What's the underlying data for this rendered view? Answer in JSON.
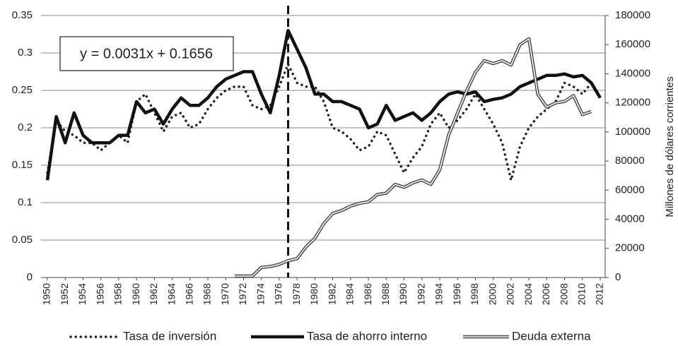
{
  "chart_data": {
    "type": "line",
    "annotation": "y = 0.0031x + 0.1656",
    "vline_x": 1977,
    "y2_label": "Millones de dólares corrientes",
    "x": [
      1950,
      1951,
      1952,
      1953,
      1954,
      1955,
      1956,
      1957,
      1958,
      1959,
      1960,
      1961,
      1962,
      1963,
      1964,
      1965,
      1966,
      1967,
      1968,
      1969,
      1970,
      1971,
      1972,
      1973,
      1974,
      1975,
      1976,
      1977,
      1978,
      1979,
      1980,
      1981,
      1982,
      1983,
      1984,
      1985,
      1986,
      1987,
      1988,
      1989,
      1990,
      1991,
      1992,
      1993,
      1994,
      1995,
      1996,
      1997,
      1998,
      1999,
      2000,
      2001,
      2002,
      2003,
      2004,
      2005,
      2006,
      2007,
      2008,
      2009,
      2010,
      2011,
      2012
    ],
    "xlim": [
      1950,
      2012
    ],
    "xticks": [
      1950,
      1952,
      1954,
      1956,
      1958,
      1960,
      1962,
      1964,
      1966,
      1968,
      1970,
      1972,
      1974,
      1976,
      1978,
      1980,
      1982,
      1984,
      1986,
      1988,
      1990,
      1992,
      1994,
      1996,
      1998,
      2000,
      2002,
      2004,
      2006,
      2008,
      2010,
      2012
    ],
    "ylim": [
      0,
      0.35
    ],
    "yticks": [
      0,
      0.05,
      0.1,
      0.15,
      0.2,
      0.25,
      0.3,
      0.35
    ],
    "y2lim": [
      0,
      180000
    ],
    "y2ticks": [
      0,
      20000,
      40000,
      60000,
      80000,
      100000,
      120000,
      140000,
      160000,
      180000
    ],
    "grid": true,
    "legend": "bottom",
    "series": [
      {
        "name": "Tasa de inversión",
        "color": "#222222",
        "style": "dotted",
        "values": [
          0.14,
          0.21,
          0.195,
          0.19,
          0.18,
          0.18,
          0.17,
          0.18,
          0.19,
          0.18,
          0.235,
          0.245,
          0.22,
          0.195,
          0.215,
          0.22,
          0.2,
          0.205,
          0.225,
          0.24,
          0.25,
          0.255,
          0.255,
          0.23,
          0.225,
          0.23,
          0.255,
          0.285,
          0.26,
          0.255,
          0.255,
          0.235,
          0.2,
          0.195,
          0.185,
          0.17,
          0.175,
          0.195,
          0.19,
          0.165,
          0.14,
          0.16,
          0.175,
          0.205,
          0.22,
          0.2,
          0.21,
          0.225,
          0.245,
          0.225,
          0.205,
          0.18,
          0.13,
          0.175,
          0.2,
          0.215,
          0.225,
          0.235,
          0.26,
          0.255,
          0.245,
          0.26,
          null
        ]
      },
      {
        "name": "Tasa de ahorro interno",
        "color": "#111111",
        "style": "solid",
        "values": [
          0.13,
          0.215,
          0.18,
          0.22,
          0.19,
          0.18,
          0.18,
          0.18,
          0.19,
          0.19,
          0.235,
          0.22,
          0.225,
          0.205,
          0.225,
          0.24,
          0.23,
          0.23,
          0.24,
          0.255,
          0.265,
          0.27,
          0.275,
          0.275,
          0.245,
          0.22,
          0.27,
          0.33,
          0.305,
          0.28,
          0.245,
          0.245,
          0.235,
          0.235,
          0.23,
          0.225,
          0.2,
          0.205,
          0.23,
          0.21,
          0.215,
          0.22,
          0.21,
          0.22,
          0.235,
          0.245,
          0.248,
          0.245,
          0.248,
          0.235,
          0.238,
          0.24,
          0.245,
          0.255,
          0.26,
          0.265,
          0.27,
          0.27,
          0.272,
          0.268,
          0.27,
          0.26,
          0.24
        ]
      },
      {
        "name": "Deuda externa",
        "color": "#444444",
        "style": "double",
        "axis": "y2",
        "values": [
          null,
          null,
          null,
          null,
          null,
          null,
          null,
          null,
          null,
          null,
          null,
          null,
          null,
          null,
          null,
          null,
          null,
          null,
          null,
          null,
          null,
          1000,
          1000,
          1000,
          7000,
          7500,
          9000,
          11500,
          13000,
          21000,
          27000,
          37000,
          44000,
          46000,
          49000,
          51000,
          52000,
          57000,
          58000,
          64000,
          62000,
          65000,
          67000,
          64000,
          74000,
          98000,
          113000,
          128000,
          141000,
          149000,
          147000,
          149000,
          146000,
          160000,
          164000,
          126000,
          117000,
          120000,
          121000,
          125000,
          112000,
          114000,
          null
        ]
      }
    ]
  }
}
